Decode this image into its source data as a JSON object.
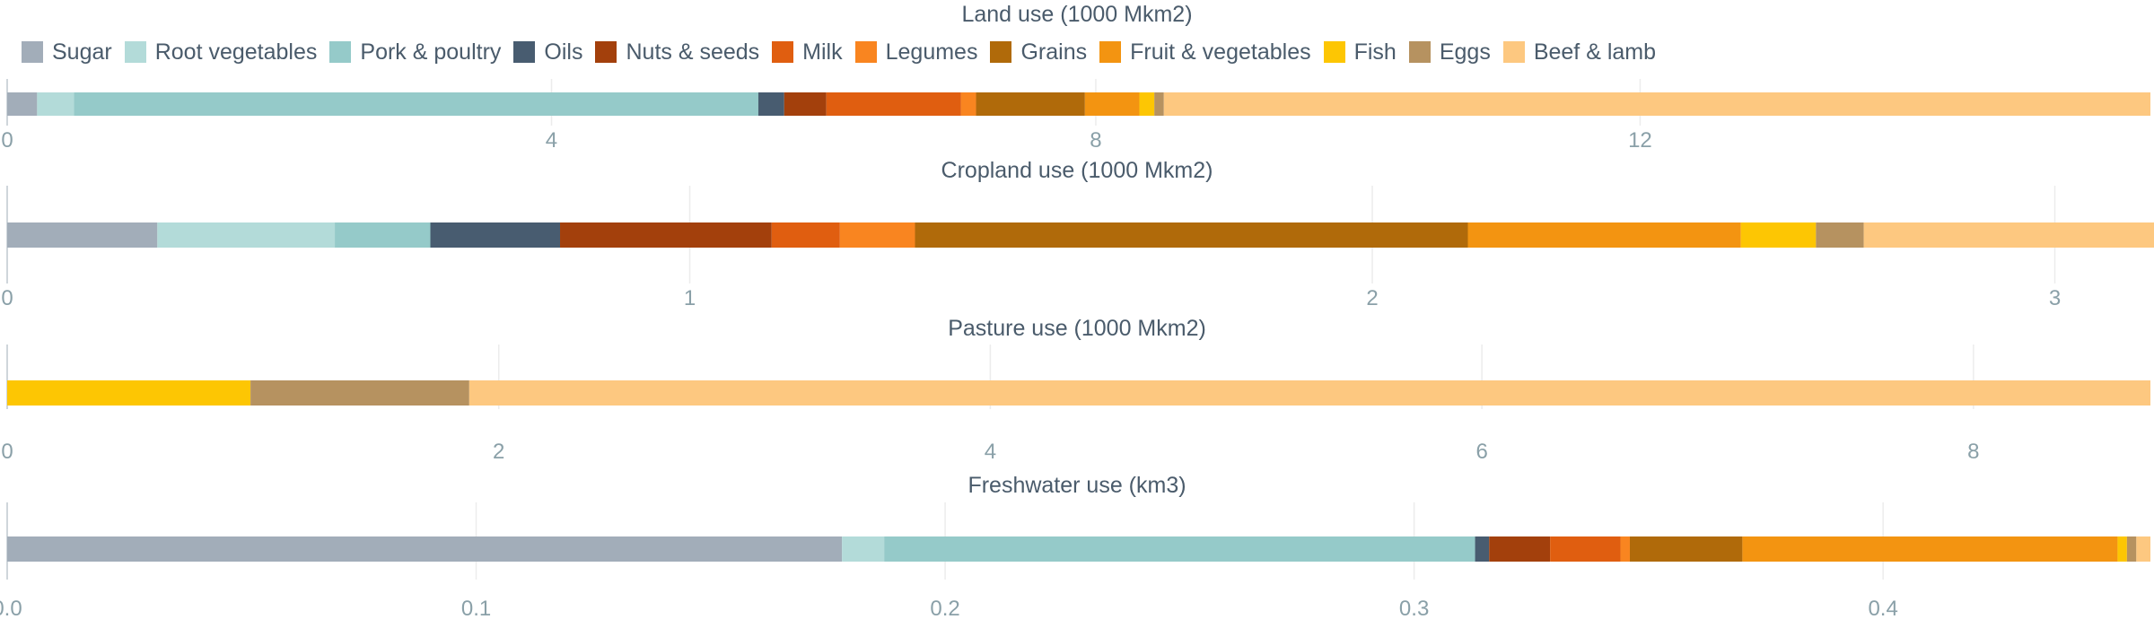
{
  "chart_data": {
    "type": "bar",
    "stacked": true,
    "orientation": "horizontal",
    "legend_placement": "top",
    "grid": true,
    "categories": [
      "Sugar",
      "Root vegetables",
      "Pork & poultry",
      "Oils",
      "Nuts & seeds",
      "Milk",
      "Legumes",
      "Grains",
      "Fruit & vegetables",
      "Fish",
      "Eggs",
      "Beef & lamb"
    ],
    "colors": [
      "#a2adb9",
      "#b3dbd9",
      "#95cac9",
      "#485c70",
      "#a3400c",
      "#e05e10",
      "#f98520",
      "#b06a0a",
      "#f39411",
      "#fdc603",
      "#b69260",
      "#fdc880"
    ],
    "panels": [
      {
        "title": "Land use (1000 Mkm2)",
        "xlim": [
          0,
          15.75
        ],
        "ticks": [
          0,
          4,
          8,
          12
        ],
        "tick_labels": [
          "0",
          "4",
          "8",
          "12"
        ],
        "values": [
          0.22,
          0.27,
          5.03,
          0.19,
          0.31,
          0.99,
          0.11,
          0.8,
          0.4,
          0.11,
          0.07,
          7.25
        ]
      },
      {
        "title": "Cropland use (1000 Mkm2)",
        "xlim": [
          0,
          3.14
        ],
        "ticks": [
          0,
          1,
          2,
          3
        ],
        "tick_labels": [
          "0",
          "1",
          "2",
          "3"
        ],
        "values": [
          0.22,
          0.26,
          0.14,
          0.19,
          0.31,
          0.1,
          0.11,
          0.81,
          0.4,
          0.11,
          0.07,
          0.44
        ]
      },
      {
        "title": "Pasture use (1000 Mkm2)",
        "xlim": [
          0,
          8.72
        ],
        "ticks": [
          0,
          2,
          4,
          6,
          8
        ],
        "tick_labels": [
          "0",
          "2",
          "4",
          "6",
          "8"
        ],
        "values": [
          0,
          0,
          0,
          0,
          0,
          0,
          0,
          0,
          0,
          0.99,
          0.89,
          6.84
        ]
      },
      {
        "title": "Freshwater use (km3)",
        "xlim": [
          0,
          0.457
        ],
        "ticks": [
          0,
          0.1,
          0.2,
          0.3,
          0.4
        ],
        "tick_labels": [
          "0.0",
          "0.1",
          "0.2",
          "0.3",
          "0.4"
        ],
        "values": [
          0.178,
          0.009,
          0.126,
          0.003,
          0.013,
          0.015,
          0.002,
          0.024,
          0.08,
          0.002,
          0.002,
          0.003
        ]
      }
    ]
  }
}
